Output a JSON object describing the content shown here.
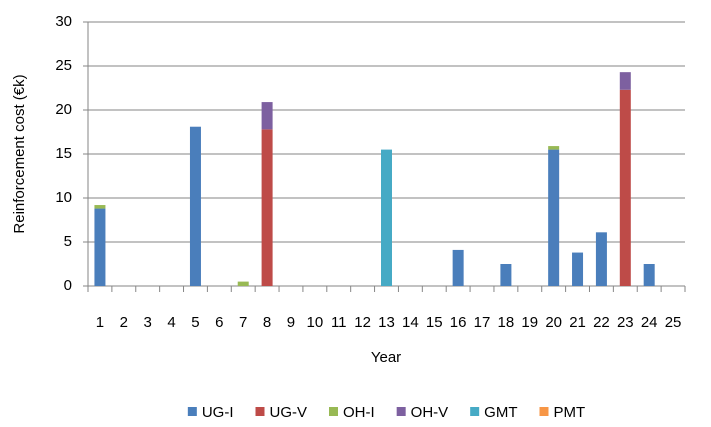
{
  "chart_data": {
    "type": "stacked_bar",
    "x_label": "Year",
    "y_label": "Reinforcement cost  (€k)",
    "categories": [
      "1",
      "2",
      "3",
      "4",
      "5",
      "6",
      "7",
      "8",
      "9",
      "10",
      "11",
      "12",
      "13",
      "14",
      "15",
      "16",
      "17",
      "18",
      "19",
      "20",
      "21",
      "22",
      "23",
      "24",
      "25"
    ],
    "series": [
      {
        "name": "UG-I",
        "color": "#4a7ebb",
        "values": [
          8.8,
          0,
          0,
          0,
          18.1,
          0,
          0,
          0,
          0,
          0,
          0,
          0,
          0,
          0,
          0,
          4.1,
          0,
          2.5,
          0,
          15.5,
          3.8,
          6.1,
          0,
          2.5,
          0
        ]
      },
      {
        "name": "UG-V",
        "color": "#be4b48",
        "values": [
          0,
          0,
          0,
          0,
          0,
          0,
          0,
          17.8,
          0,
          0,
          0,
          0,
          0,
          0,
          0,
          0,
          0,
          0,
          0,
          0,
          0,
          0,
          22.3,
          0,
          0
        ]
      },
      {
        "name": "OH-I",
        "color": "#98b954",
        "values": [
          0.4,
          0,
          0,
          0,
          0,
          0,
          0.5,
          0,
          0,
          0,
          0,
          0,
          0,
          0,
          0,
          0,
          0,
          0,
          0,
          0.4,
          0,
          0,
          0,
          0,
          0
        ]
      },
      {
        "name": "OH-V",
        "color": "#7d60a0",
        "values": [
          0,
          0,
          0,
          0,
          0,
          0,
          0,
          3.1,
          0,
          0,
          0,
          0,
          0,
          0,
          0,
          0,
          0,
          0,
          0,
          0,
          0,
          0,
          2.0,
          0,
          0
        ]
      },
      {
        "name": "GMT",
        "color": "#46aac5",
        "values": [
          0,
          0,
          0,
          0,
          0,
          0,
          0,
          0,
          0,
          0,
          0,
          0,
          15.5,
          0,
          0,
          0,
          0,
          0,
          0,
          0,
          0,
          0,
          0,
          0,
          0
        ]
      },
      {
        "name": "PMT",
        "color": "#f79646",
        "values": [
          0,
          0,
          0,
          0,
          0,
          0,
          0,
          0,
          0,
          0,
          0,
          0,
          0,
          0,
          0,
          0,
          0,
          0,
          0,
          0,
          0,
          0,
          0,
          0,
          0
        ]
      }
    ],
    "ylim": [
      0,
      30
    ],
    "yticks": [
      0,
      5,
      10,
      15,
      20,
      25,
      30
    ],
    "grid": true,
    "legend": "bottom"
  }
}
